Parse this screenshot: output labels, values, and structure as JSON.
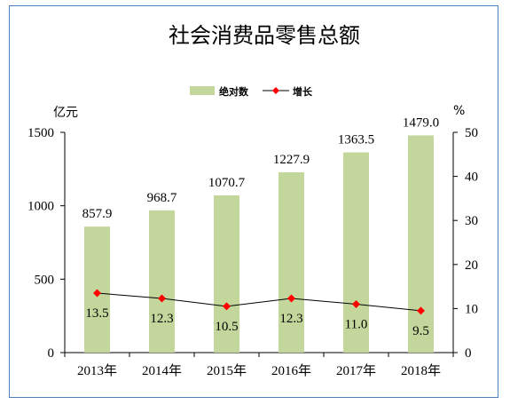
{
  "chart_data": {
    "type": "bar",
    "title": "社会消费品零售总额",
    "categories": [
      "2013年",
      "2014年",
      "2015年",
      "2016年",
      "2017年",
      "2018年"
    ],
    "series": [
      {
        "name": "绝对数",
        "type": "bar",
        "axis": "left",
        "values": [
          857.9,
          968.7,
          1070.7,
          1227.9,
          1363.5,
          1479.0
        ],
        "labels": [
          "857.9",
          "968.7",
          "1070.7",
          "1227.9",
          "1363.5",
          "1479.0"
        ],
        "color": "#c3d69b"
      },
      {
        "name": "增长",
        "type": "line",
        "axis": "right",
        "values": [
          13.5,
          12.3,
          10.5,
          12.3,
          11.0,
          9.5
        ],
        "labels": [
          "13.5",
          "12.3",
          "10.5",
          "12.3",
          "11.0",
          "9.5"
        ],
        "color": "#ff0000",
        "line_color": "#000000"
      }
    ],
    "y_left": {
      "unit": "亿元",
      "ylim": [
        0,
        1500
      ],
      "ticks": [
        "0",
        "500",
        "1000",
        "1500"
      ]
    },
    "y_right": {
      "unit": "%",
      "ylim": [
        0,
        50
      ],
      "ticks": [
        "0",
        "10",
        "20",
        "30",
        "40",
        "50"
      ]
    },
    "legend": "top-center",
    "grid": false
  }
}
